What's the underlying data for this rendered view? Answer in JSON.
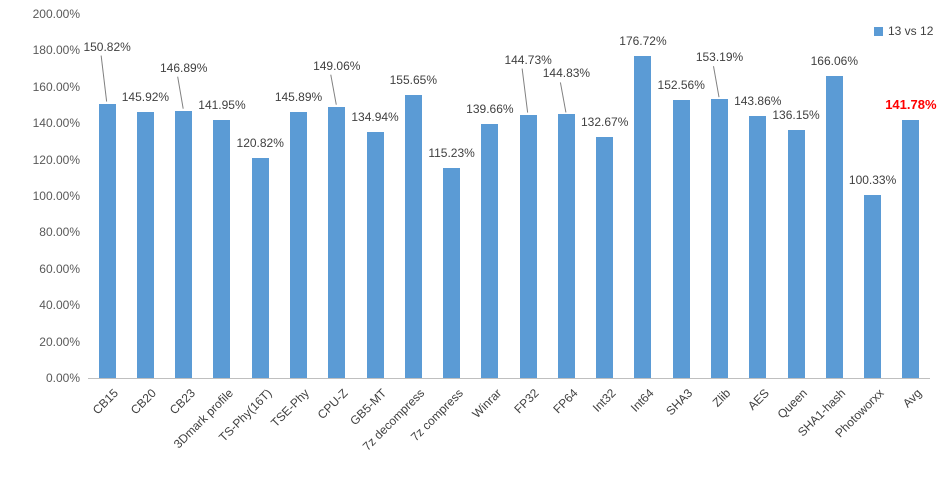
{
  "chart_data": {
    "type": "bar",
    "title": "",
    "legend": {
      "position": "top-right",
      "label": "13 vs 12",
      "color": "#5B9BD5"
    },
    "categories": [
      "CB15",
      "CB20",
      "CB23",
      "3Dmark profile",
      "TS-Phy(16T)",
      "TSE-Phy",
      "CPU-Z",
      "GB5-MT",
      "7z decompress",
      "7z compress",
      "Winrar",
      "FP32",
      "FP64",
      "Int32",
      "Int64",
      "SHA3",
      "Zlib",
      "AES",
      "Queen",
      "SHA1-hash",
      "Photoworxx",
      "Avg"
    ],
    "values": [
      150.82,
      145.92,
      146.89,
      141.95,
      120.82,
      145.89,
      149.06,
      134.94,
      155.65,
      115.23,
      139.66,
      144.73,
      144.83,
      132.67,
      176.72,
      152.56,
      153.19,
      143.86,
      136.15,
      166.06,
      100.33,
      141.78
    ],
    "labels": [
      "150.82%",
      "145.92%",
      "146.89%",
      "141.95%",
      "120.82%",
      "145.89%",
      "149.06%",
      "134.94%",
      "155.65%",
      "115.23%",
      "139.66%",
      "144.73%",
      "144.83%",
      "132.67%",
      "176.72%",
      "152.56%",
      "153.19%",
      "143.86%",
      "136.15%",
      "166.06%",
      "100.33%",
      "141.78%"
    ],
    "ylim": [
      0,
      200
    ],
    "ytick_step": 20,
    "ytick_labels": [
      "0.00%",
      "20.00%",
      "40.00%",
      "60.00%",
      "80.00%",
      "100.00%",
      "120.00%",
      "140.00%",
      "160.00%",
      "180.00%",
      "200.00%"
    ],
    "grid": false,
    "bar_color": "#5B9BD5",
    "label_color": "#404040",
    "axis_color": "#595959",
    "highlight": {
      "category": "Avg",
      "index": 21,
      "color": "#FF0000",
      "bold": true
    },
    "callouts": [
      {
        "index": 0,
        "raise": 57
      },
      {
        "index": 2,
        "raise": 43
      },
      {
        "index": 6,
        "raise": 41
      },
      {
        "index": 11,
        "raise": 55
      },
      {
        "index": 12,
        "raise": 41
      },
      {
        "index": 16,
        "raise": 42
      }
    ]
  }
}
